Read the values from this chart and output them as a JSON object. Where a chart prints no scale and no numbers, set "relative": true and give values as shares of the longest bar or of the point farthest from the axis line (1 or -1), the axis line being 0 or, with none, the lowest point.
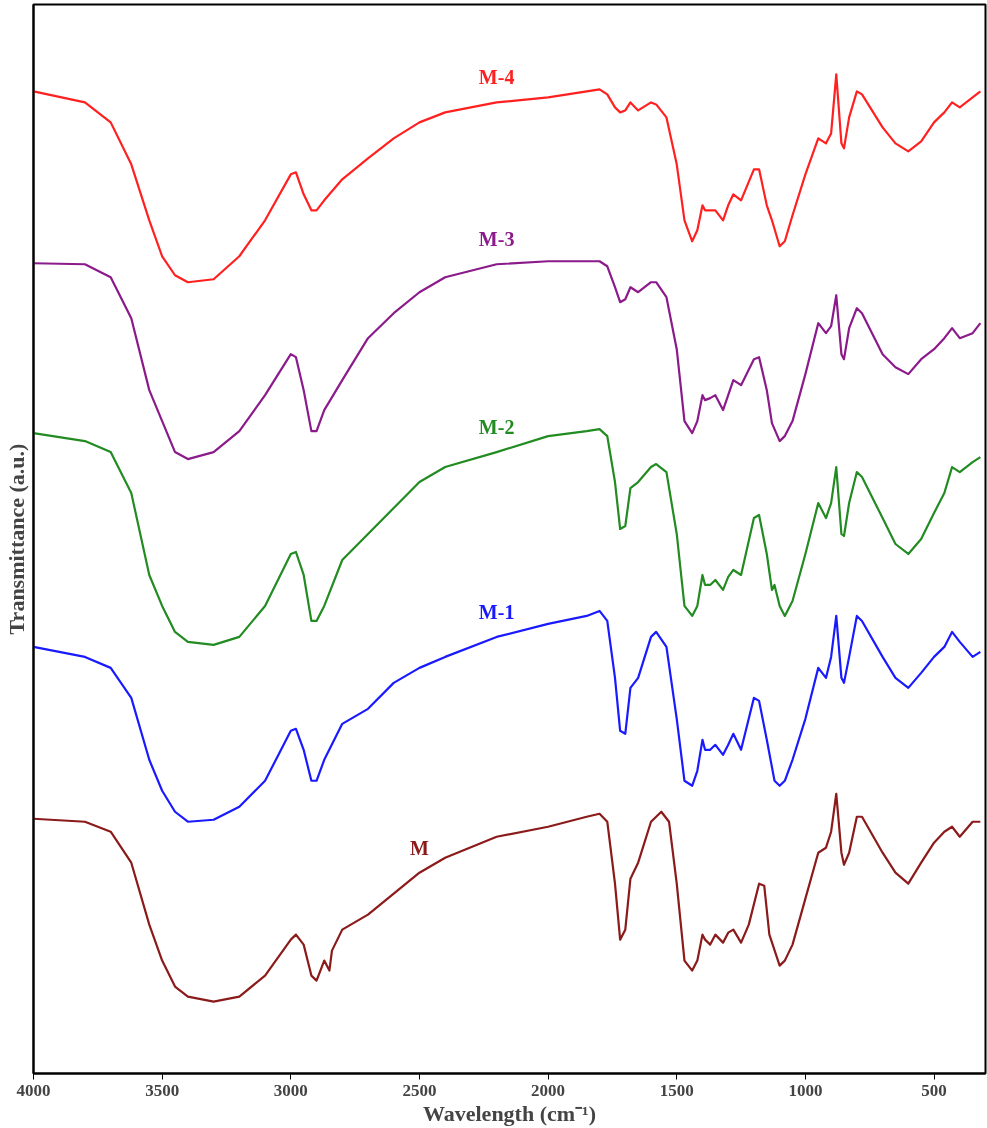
{
  "chart_data": {
    "type": "line",
    "relative": true,
    "xlabel": "Wavelength (cm⁻¹)",
    "ylabel": "Transmittance (a.u.)",
    "xlim": [
      4000,
      300
    ],
    "xticks": [
      4000,
      3500,
      3000,
      2500,
      2000,
      1500,
      1000,
      500
    ],
    "grid": false,
    "legend": false,
    "tick_labels": "x",
    "series": [
      {
        "name": "M",
        "color": "#8b1a1a",
        "x": [
          4000,
          3800,
          3700,
          3620,
          3550,
          3500,
          3450,
          3400,
          3300,
          3200,
          3100,
          3000,
          2980,
          2950,
          2920,
          2900,
          2870,
          2850,
          2840,
          2800,
          2700,
          2600,
          2500,
          2400,
          2200,
          2000,
          1850,
          1800,
          1770,
          1740,
          1720,
          1700,
          1680,
          1650,
          1600,
          1560,
          1530,
          1500,
          1470,
          1440,
          1420,
          1400,
          1390,
          1370,
          1350,
          1320,
          1300,
          1280,
          1250,
          1220,
          1180,
          1160,
          1140,
          1100,
          1080,
          1050,
          1000,
          950,
          920,
          900,
          880,
          860,
          850,
          830,
          800,
          780,
          700,
          650,
          600,
          550,
          500,
          460,
          430,
          400,
          350,
          320
        ],
        "values": [
          0.255,
          0.252,
          0.242,
          0.211,
          0.149,
          0.113,
          0.087,
          0.077,
          0.072,
          0.077,
          0.098,
          0.134,
          0.139,
          0.129,
          0.098,
          0.093,
          0.113,
          0.103,
          0.123,
          0.144,
          0.159,
          0.18,
          0.201,
          0.216,
          0.237,
          0.247,
          0.257,
          0.26,
          0.252,
          0.19,
          0.134,
          0.144,
          0.195,
          0.211,
          0.252,
          0.262,
          0.252,
          0.19,
          0.113,
          0.103,
          0.113,
          0.139,
          0.134,
          0.129,
          0.139,
          0.131,
          0.141,
          0.144,
          0.131,
          0.149,
          0.19,
          0.188,
          0.139,
          0.108,
          0.113,
          0.129,
          0.175,
          0.221,
          0.226,
          0.242,
          0.28,
          0.221,
          0.209,
          0.221,
          0.257,
          0.257,
          0.221,
          0.201,
          0.19,
          0.211,
          0.231,
          0.242,
          0.247,
          0.237,
          0.252,
          0.252
        ]
      },
      {
        "name": "M-1",
        "color": "#1a1aff",
        "x": [
          4000,
          3800,
          3700,
          3620,
          3550,
          3500,
          3450,
          3400,
          3300,
          3200,
          3100,
          3000,
          2980,
          2950,
          2920,
          2900,
          2870,
          2800,
          2700,
          2600,
          2500,
          2400,
          2200,
          2000,
          1850,
          1800,
          1770,
          1740,
          1720,
          1700,
          1680,
          1650,
          1600,
          1580,
          1540,
          1500,
          1470,
          1440,
          1420,
          1400,
          1390,
          1370,
          1350,
          1320,
          1300,
          1280,
          1250,
          1200,
          1180,
          1150,
          1120,
          1100,
          1080,
          1050,
          1000,
          950,
          920,
          900,
          880,
          860,
          850,
          830,
          800,
          780,
          700,
          650,
          600,
          550,
          500,
          460,
          430,
          400,
          350,
          320
        ],
        "values": [
          0.427,
          0.417,
          0.406,
          0.376,
          0.314,
          0.283,
          0.262,
          0.252,
          0.254,
          0.267,
          0.293,
          0.343,
          0.345,
          0.324,
          0.293,
          0.293,
          0.314,
          0.35,
          0.365,
          0.391,
          0.406,
          0.417,
          0.437,
          0.45,
          0.458,
          0.463,
          0.453,
          0.396,
          0.343,
          0.34,
          0.386,
          0.396,
          0.437,
          0.442,
          0.427,
          0.355,
          0.293,
          0.288,
          0.303,
          0.334,
          0.324,
          0.324,
          0.329,
          0.319,
          0.329,
          0.34,
          0.324,
          0.376,
          0.373,
          0.334,
          0.293,
          0.288,
          0.293,
          0.314,
          0.355,
          0.406,
          0.396,
          0.417,
          0.458,
          0.396,
          0.391,
          0.417,
          0.458,
          0.453,
          0.417,
          0.396,
          0.386,
          0.401,
          0.417,
          0.427,
          0.442,
          0.432,
          0.417,
          0.422
        ]
      },
      {
        "name": "M-2",
        "color": "#228b22",
        "x": [
          4000,
          3800,
          3700,
          3620,
          3550,
          3500,
          3450,
          3400,
          3300,
          3200,
          3100,
          3000,
          2980,
          2950,
          2920,
          2900,
          2870,
          2800,
          2700,
          2600,
          2500,
          2400,
          2200,
          2000,
          1850,
          1800,
          1770,
          1740,
          1720,
          1700,
          1680,
          1650,
          1600,
          1580,
          1540,
          1500,
          1470,
          1440,
          1420,
          1400,
          1390,
          1370,
          1350,
          1320,
          1300,
          1280,
          1250,
          1200,
          1180,
          1150,
          1130,
          1120,
          1100,
          1080,
          1050,
          1000,
          950,
          920,
          900,
          880,
          860,
          850,
          830,
          800,
          780,
          700,
          650,
          600,
          550,
          500,
          460,
          430,
          400,
          350,
          320
        ],
        "values": [
          0.641,
          0.633,
          0.622,
          0.581,
          0.499,
          0.468,
          0.442,
          0.432,
          0.429,
          0.437,
          0.468,
          0.52,
          0.522,
          0.499,
          0.453,
          0.453,
          0.468,
          0.514,
          0.54,
          0.566,
          0.592,
          0.607,
          0.622,
          0.638,
          0.643,
          0.645,
          0.638,
          0.592,
          0.545,
          0.548,
          0.586,
          0.592,
          0.607,
          0.61,
          0.602,
          0.54,
          0.468,
          0.458,
          0.468,
          0.499,
          0.489,
          0.489,
          0.494,
          0.484,
          0.497,
          0.504,
          0.499,
          0.556,
          0.559,
          0.52,
          0.484,
          0.489,
          0.468,
          0.458,
          0.473,
          0.52,
          0.571,
          0.556,
          0.571,
          0.607,
          0.54,
          0.538,
          0.571,
          0.602,
          0.597,
          0.556,
          0.53,
          0.52,
          0.535,
          0.561,
          0.581,
          0.607,
          0.602,
          0.612,
          0.617
        ]
      },
      {
        "name": "M-3",
        "color": "#8b1a8b",
        "x": [
          4000,
          3800,
          3700,
          3620,
          3550,
          3500,
          3450,
          3400,
          3300,
          3200,
          3100,
          3000,
          2980,
          2950,
          2920,
          2900,
          2870,
          2800,
          2700,
          2600,
          2500,
          2400,
          2200,
          2000,
          1850,
          1800,
          1770,
          1740,
          1720,
          1700,
          1680,
          1650,
          1600,
          1580,
          1540,
          1500,
          1470,
          1440,
          1420,
          1400,
          1390,
          1370,
          1350,
          1320,
          1300,
          1280,
          1250,
          1200,
          1180,
          1150,
          1130,
          1100,
          1080,
          1050,
          1000,
          950,
          920,
          900,
          880,
          860,
          850,
          830,
          800,
          780,
          700,
          650,
          600,
          550,
          500,
          460,
          430,
          400,
          350,
          320
        ],
        "values": [
          0.811,
          0.81,
          0.797,
          0.756,
          0.684,
          0.653,
          0.622,
          0.615,
          0.622,
          0.643,
          0.679,
          0.72,
          0.717,
          0.684,
          0.643,
          0.643,
          0.664,
          0.694,
          0.736,
          0.761,
          0.782,
          0.797,
          0.81,
          0.813,
          0.813,
          0.813,
          0.808,
          0.787,
          0.772,
          0.775,
          0.787,
          0.782,
          0.792,
          0.792,
          0.777,
          0.725,
          0.653,
          0.641,
          0.653,
          0.679,
          0.674,
          0.676,
          0.679,
          0.664,
          0.679,
          0.694,
          0.689,
          0.715,
          0.717,
          0.684,
          0.651,
          0.633,
          0.638,
          0.653,
          0.7,
          0.751,
          0.741,
          0.748,
          0.779,
          0.72,
          0.715,
          0.746,
          0.766,
          0.761,
          0.72,
          0.707,
          0.7,
          0.715,
          0.725,
          0.736,
          0.746,
          0.736,
          0.741,
          0.751
        ]
      },
      {
        "name": "M-4",
        "color": "#ff2020",
        "x": [
          4000,
          3800,
          3700,
          3620,
          3550,
          3500,
          3450,
          3400,
          3300,
          3200,
          3100,
          3000,
          2980,
          2950,
          2920,
          2900,
          2870,
          2800,
          2700,
          2600,
          2500,
          2400,
          2200,
          2000,
          1850,
          1800,
          1770,
          1740,
          1720,
          1700,
          1680,
          1650,
          1600,
          1580,
          1540,
          1500,
          1470,
          1440,
          1420,
          1400,
          1390,
          1370,
          1350,
          1320,
          1300,
          1280,
          1250,
          1200,
          1180,
          1150,
          1130,
          1100,
          1080,
          1050,
          1000,
          950,
          920,
          900,
          880,
          860,
          850,
          830,
          800,
          780,
          700,
          650,
          600,
          550,
          500,
          460,
          430,
          400,
          350,
          320
        ],
        "values": [
          0.983,
          0.972,
          0.952,
          0.91,
          0.854,
          0.818,
          0.799,
          0.792,
          0.795,
          0.818,
          0.854,
          0.9,
          0.902,
          0.88,
          0.864,
          0.864,
          0.874,
          0.895,
          0.916,
          0.936,
          0.952,
          0.962,
          0.972,
          0.977,
          0.983,
          0.985,
          0.98,
          0.967,
          0.962,
          0.964,
          0.972,
          0.964,
          0.972,
          0.97,
          0.957,
          0.91,
          0.854,
          0.833,
          0.844,
          0.869,
          0.864,
          0.864,
          0.864,
          0.854,
          0.869,
          0.88,
          0.874,
          0.905,
          0.905,
          0.869,
          0.854,
          0.828,
          0.833,
          0.859,
          0.9,
          0.936,
          0.931,
          0.941,
          1.0,
          0.931,
          0.926,
          0.957,
          0.983,
          0.98,
          0.947,
          0.931,
          0.923,
          0.933,
          0.952,
          0.962,
          0.972,
          0.967,
          0.977,
          0.983
        ]
      }
    ]
  }
}
